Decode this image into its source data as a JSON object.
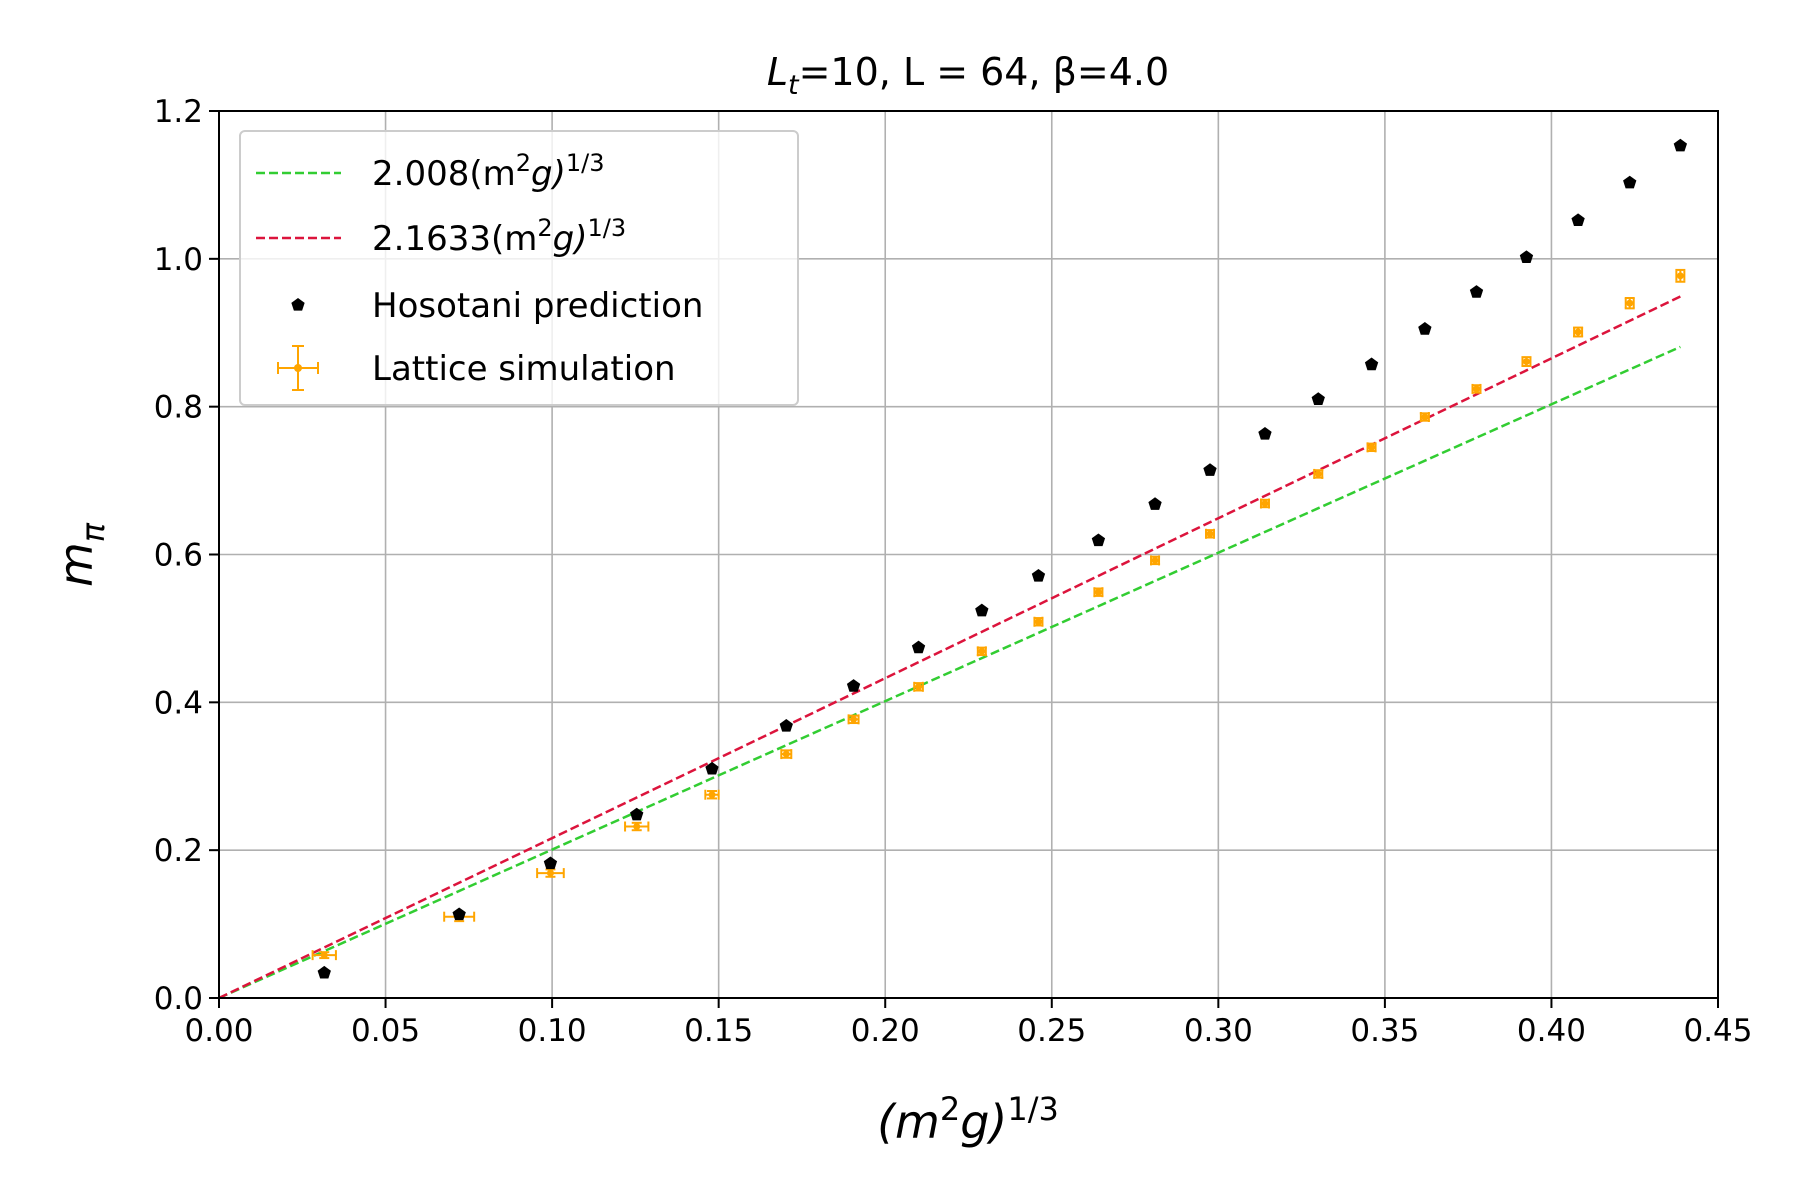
{
  "chart_data": {
    "type": "scatter",
    "title": {
      "base": "L",
      "sub": "t",
      "rest": "=10,  L = 64, β=4.0"
    },
    "xlabel": {
      "base": "(m",
      "sup1": "2",
      "mid": "g)",
      "sup2": "1/3"
    },
    "ylabel": {
      "base": "m",
      "sub": "π"
    },
    "xlim": [
      0,
      0.45
    ],
    "ylim": [
      0,
      1.2
    ],
    "xticks": [
      "0.00",
      "0.05",
      "0.10",
      "0.15",
      "0.20",
      "0.25",
      "0.30",
      "0.35",
      "0.40",
      "0.45"
    ],
    "yticks": [
      "0.0",
      "0.2",
      "0.4",
      "0.6",
      "0.8",
      "1.0",
      "1.2"
    ],
    "grid": true,
    "legend_position": "top-left",
    "series": [
      {
        "name": {
          "pre": "2.008(m",
          "sup1": "2",
          "mid": "g)",
          "sup2": "1/3"
        },
        "kind": "dashed-line",
        "color": "#32cd32",
        "slope": 2.008,
        "x": [
          0,
          0.4387
        ]
      },
      {
        "name": {
          "pre": "2.1633(m",
          "sup1": "2",
          "mid": "g)",
          "sup2": "1/3"
        },
        "kind": "dashed-line",
        "color": "#dc143c",
        "slope": 2.1633,
        "x": [
          0,
          0.4387
        ]
      },
      {
        "name": "Hosotani prediction",
        "kind": "pentagon-markers",
        "color": "#000000",
        "x": [
          0.0316,
          0.0721,
          0.0995,
          0.1254,
          0.148,
          0.1703,
          0.1905,
          0.21,
          0.229,
          0.246,
          0.264,
          0.281,
          0.2975,
          0.314,
          0.33,
          0.346,
          0.362,
          0.3775,
          0.3925,
          0.408,
          0.4235,
          0.4387
        ],
        "y": [
          0.034,
          0.113,
          0.182,
          0.248,
          0.31,
          0.368,
          0.422,
          0.474,
          0.524,
          0.571,
          0.619,
          0.668,
          0.714,
          0.763,
          0.81,
          0.857,
          0.905,
          0.955,
          1.002,
          1.052,
          1.103,
          1.153
        ]
      },
      {
        "name": "Lattice simulation",
        "kind": "errorbar",
        "color": "#ffa500",
        "x": [
          0.0316,
          0.0721,
          0.0995,
          0.1254,
          0.148,
          0.1703,
          0.1905,
          0.21,
          0.229,
          0.246,
          0.264,
          0.281,
          0.2975,
          0.314,
          0.33,
          0.346,
          0.362,
          0.3775,
          0.3925,
          0.408,
          0.4235,
          0.4387
        ],
        "y": [
          0.058,
          0.11,
          0.169,
          0.232,
          0.275,
          0.33,
          0.377,
          0.421,
          0.469,
          0.509,
          0.549,
          0.592,
          0.628,
          0.669,
          0.709,
          0.745,
          0.786,
          0.824,
          0.861,
          0.901,
          0.94,
          0.977
        ],
        "xerr": [
          0.0035,
          0.0045,
          0.004,
          0.0035,
          0.002,
          0.0015,
          0.0015,
          0.0013,
          0.0012,
          0.0012,
          0.0012,
          0.0012,
          0.0012,
          0.0012,
          0.0012,
          0.0012,
          0.0012,
          0.0012,
          0.0012,
          0.0012,
          0.0012,
          0.0012
        ],
        "yerr": [
          0.004,
          0.006,
          0.005,
          0.005,
          0.005,
          0.005,
          0.005,
          0.005,
          0.005,
          0.005,
          0.005,
          0.005,
          0.005,
          0.005,
          0.005,
          0.005,
          0.005,
          0.005,
          0.006,
          0.006,
          0.007,
          0.008
        ]
      }
    ]
  }
}
